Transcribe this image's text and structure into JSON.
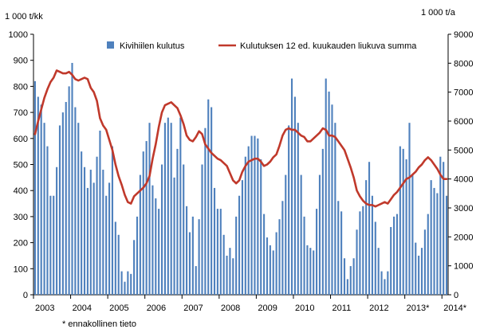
{
  "chart_data": {
    "type": "bar+line",
    "title": "",
    "y_left_label": "1 000 t/kk",
    "y_right_label": "1 000 t/a",
    "y_left_lim": [
      0,
      1000
    ],
    "y_left_ticks": [
      0,
      100,
      200,
      300,
      400,
      500,
      600,
      700,
      800,
      900,
      1000
    ],
    "y_right_lim": [
      0,
      9000
    ],
    "y_right_ticks": [
      0,
      1000,
      2000,
      3000,
      4000,
      5000,
      6000,
      7000,
      8000,
      9000
    ],
    "x_tick_labels": [
      "2003",
      "2004",
      "2005",
      "2006",
      "2007",
      "2008",
      "2009",
      "2010",
      "2011",
      "2012",
      "2013*",
      "2014*"
    ],
    "footnote": "* ennakollinen tieto",
    "grid": "none",
    "legend_position": "top",
    "series": [
      {
        "name": "Kivihiilen kulutus",
        "type": "bar",
        "axis": "left",
        "color": "#4f81bd",
        "values": [
          820,
          760,
          730,
          660,
          570,
          380,
          380,
          490,
          650,
          700,
          740,
          800,
          890,
          720,
          660,
          550,
          490,
          410,
          480,
          430,
          530,
          630,
          480,
          380,
          430,
          570,
          280,
          230,
          90,
          50,
          90,
          80,
          210,
          300,
          460,
          550,
          590,
          660,
          420,
          370,
          330,
          500,
          660,
          680,
          660,
          450,
          560,
          680,
          500,
          340,
          240,
          300,
          110,
          290,
          500,
          640,
          750,
          720,
          410,
          330,
          330,
          230,
          150,
          180,
          140,
          300,
          380,
          440,
          530,
          570,
          610,
          610,
          600,
          520,
          310,
          220,
          190,
          170,
          240,
          290,
          360,
          460,
          650,
          830,
          760,
          660,
          460,
          300,
          190,
          180,
          170,
          330,
          460,
          560,
          830,
          780,
          730,
          660,
          360,
          320,
          140,
          60,
          110,
          140,
          250,
          320,
          340,
          440,
          510,
          380,
          280,
          180,
          90,
          60,
          90,
          260,
          300,
          310,
          570,
          560,
          520,
          660,
          460,
          200,
          150,
          180,
          250,
          310,
          440,
          410,
          390,
          530,
          510,
          380
        ]
      },
      {
        "name": "Kulutuksen 12 ed. kuukauden liukuva summa",
        "type": "line",
        "axis": "right",
        "color": "#c0392b",
        "values": [
          5550,
          6000,
          6400,
          6800,
          7100,
          7350,
          7500,
          7750,
          7700,
          7650,
          7650,
          7700,
          7600,
          7450,
          7400,
          7450,
          7500,
          7450,
          7150,
          7000,
          6700,
          6100,
          5850,
          5700,
          5350,
          5000,
          4500,
          4100,
          3800,
          3450,
          3200,
          3150,
          3400,
          3500,
          3600,
          3700,
          3850,
          4100,
          4700,
          5200,
          5800,
          6300,
          6550,
          6600,
          6650,
          6550,
          6450,
          6200,
          5900,
          5500,
          5350,
          5300,
          5450,
          5650,
          5550,
          5200,
          5050,
          4900,
          4800,
          4700,
          4650,
          4550,
          4450,
          4200,
          3950,
          3850,
          3950,
          4250,
          4450,
          4600,
          4650,
          4700,
          4700,
          4600,
          4450,
          4500,
          4600,
          4750,
          4850,
          5150,
          5500,
          5700,
          5750,
          5700,
          5700,
          5600,
          5500,
          5450,
          5300,
          5300,
          5400,
          5500,
          5600,
          5750,
          5700,
          5500,
          5500,
          5450,
          5300,
          5150,
          5000,
          4700,
          4400,
          4050,
          3600,
          3400,
          3250,
          3150,
          3100,
          3100,
          3050,
          3100,
          3150,
          3200,
          3150,
          3300,
          3450,
          3550,
          3700,
          3850,
          4000,
          4050,
          4150,
          4250,
          4400,
          4500,
          4650,
          4750,
          4650,
          4500,
          4350,
          4150,
          4000,
          4000
        ]
      }
    ]
  }
}
